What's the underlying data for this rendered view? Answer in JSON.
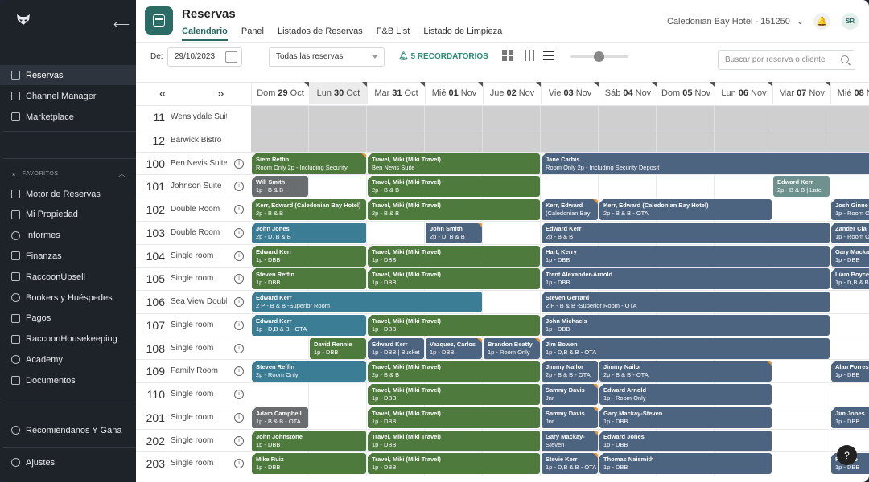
{
  "sidebar": {
    "items": [
      {
        "label": "Reservas",
        "icon": "calendar-icon",
        "active": true
      },
      {
        "label": "Channel Manager",
        "icon": "cloud-icon"
      },
      {
        "label": "Marketplace",
        "icon": "grid-icon"
      }
    ],
    "favorites_label": "FAVORITOS",
    "favorites": [
      {
        "label": "Motor de Reservas",
        "icon": "booking-engine-icon"
      },
      {
        "label": "Mi Propiedad",
        "icon": "building-icon"
      },
      {
        "label": "Informes",
        "icon": "reports-icon"
      },
      {
        "label": "Finanzas",
        "icon": "finance-icon"
      },
      {
        "label": "RaccoonUpsell",
        "icon": "upsell-icon"
      },
      {
        "label": "Bookers y Huéspedes",
        "icon": "guests-icon"
      },
      {
        "label": "Pagos",
        "icon": "payments-icon"
      },
      {
        "label": "RaccoonHousekeeping",
        "icon": "housekeeping-icon"
      },
      {
        "label": "Academy",
        "icon": "academy-icon"
      },
      {
        "label": "Documentos",
        "icon": "documents-icon"
      }
    ],
    "recommend": "Recomiéndanos Y Gana",
    "settings": "Ajustes"
  },
  "header": {
    "title": "Reservas",
    "tabs": [
      "Calendario",
      "Panel",
      "Listados de Reservas",
      "F&B List",
      "Listado de Limpieza"
    ],
    "hotel": "Caledonian Bay Hotel - 151250",
    "avatar": "SR"
  },
  "toolbar": {
    "date_label": "De:",
    "date": "29/10/2023",
    "filter": "Todas las reservas",
    "reminders": "5 RECORDATORIOS",
    "search_placeholder": "Buscar por reserva o cliente"
  },
  "days": [
    {
      "wd": "Dom",
      "d": "29",
      "m": "Oct"
    },
    {
      "wd": "Lun",
      "d": "30",
      "m": "Oct",
      "today": true
    },
    {
      "wd": "Mar",
      "d": "31",
      "m": "Oct"
    },
    {
      "wd": "Mié",
      "d": "01",
      "m": "Nov"
    },
    {
      "wd": "Jue",
      "d": "02",
      "m": "Nov"
    },
    {
      "wd": "Vie",
      "d": "03",
      "m": "Nov"
    },
    {
      "wd": "Sáb",
      "d": "04",
      "m": "Nov"
    },
    {
      "wd": "Dom",
      "d": "05",
      "m": "Nov"
    },
    {
      "wd": "Lun",
      "d": "06",
      "m": "Nov"
    },
    {
      "wd": "Mar",
      "d": "07",
      "m": "Nov"
    },
    {
      "wd": "Mié",
      "d": "08",
      "m": "Nov"
    }
  ],
  "rooms": [
    {
      "num": "11",
      "name": "Wenslydale Suite",
      "grey": true,
      "bookings": []
    },
    {
      "num": "12",
      "name": "Barwick Bistro",
      "grey": true,
      "bookings": []
    },
    {
      "num": "100",
      "name": "Ben Nevis Suite",
      "bookings": [
        {
          "s": 0,
          "e": 2,
          "c": "g",
          "n": "Siem Reffin",
          "d": "Room Only 2p - Including Security",
          "mk": true,
          "st": true
        },
        {
          "s": 2,
          "e": 5,
          "c": "g",
          "n": "Travel, Miki (Miki Travel)",
          "d": "Ben Nevis Suite",
          "st": true
        },
        {
          "s": 5,
          "e": 11,
          "c": "b",
          "n": "Jane Carbis",
          "d": "Room Only 2p - Including Security Deposit",
          "st": true
        }
      ]
    },
    {
      "num": "101",
      "name": "Johnson Suite",
      "bookings": [
        {
          "s": 0,
          "e": 1,
          "c": "gr",
          "n": "Will Smith",
          "d": "1p - B & B -",
          "st": true
        },
        {
          "s": 2,
          "e": 5,
          "c": "g",
          "n": "Travel, Miki (Miki Travel)",
          "d": "2p - B & B",
          "st": true
        },
        {
          "s": 9,
          "e": 10,
          "c": "gt",
          "n": "Edward Kerr",
          "d": "2p - B & B | Late"
        }
      ]
    },
    {
      "num": "102",
      "name": "Double Room",
      "bookings": [
        {
          "s": 0,
          "e": 2,
          "c": "g",
          "n": "Kerr, Edward (Caledonian Bay Hotel)",
          "d": "2p - B & B",
          "st": true
        },
        {
          "s": 2,
          "e": 5,
          "c": "g",
          "n": "Travel, Miki (Miki Travel)",
          "d": "2p - B & B",
          "st": true
        },
        {
          "s": 5,
          "e": 6,
          "c": "b",
          "n": "Kerr, Edward",
          "d": "(Caledonian Bay",
          "mk": true,
          "st": true
        },
        {
          "s": 6,
          "e": 9,
          "c": "b",
          "n": "Kerr, Edward (Caledonian Bay Hotel)",
          "d": "2p - B & B - OTA",
          "st": true
        },
        {
          "s": 10,
          "e": 11,
          "c": "b",
          "n": "Josh Ginne",
          "d": "1p - Room O",
          "st": true
        }
      ]
    },
    {
      "num": "103",
      "name": "Double Room",
      "bookings": [
        {
          "s": 0,
          "e": 2,
          "c": "t",
          "n": "John Jones",
          "d": "2p - D, B & B",
          "st": true
        },
        {
          "s": 3,
          "e": 4,
          "c": "b",
          "n": "John Smith",
          "d": "2p - D, B & B",
          "mk": true
        },
        {
          "s": 5,
          "e": 10,
          "c": "b",
          "n": "Edward Kerr",
          "d": "2p - B & B",
          "st": true
        },
        {
          "s": 10,
          "e": 11,
          "c": "b",
          "n": "Zander Cla",
          "d": "1p - Room O",
          "st": true
        }
      ]
    },
    {
      "num": "104",
      "name": "Single room",
      "bookings": [
        {
          "s": 0,
          "e": 2,
          "c": "g",
          "n": "Edward Kerr",
          "d": "1p - DBB",
          "st": true
        },
        {
          "s": 2,
          "e": 5,
          "c": "g",
          "n": "Travel, Miki (Miki Travel)",
          "d": "1p - DBB",
          "st": true
        },
        {
          "s": 5,
          "e": 10,
          "c": "b",
          "n": "Hart, Kerry",
          "d": "1p - DBB",
          "st": true
        },
        {
          "s": 10,
          "e": 11,
          "c": "b",
          "n": "Gary Macka",
          "d": "1p - DBB",
          "st": true
        }
      ]
    },
    {
      "num": "105",
      "name": "Single room",
      "bookings": [
        {
          "s": 0,
          "e": 2,
          "c": "g",
          "n": "Steven Reffin",
          "d": "1p - DBB",
          "st": true
        },
        {
          "s": 2,
          "e": 5,
          "c": "g",
          "n": "Travel, Miki (Miki Travel)",
          "d": "1p - DBB",
          "st": true
        },
        {
          "s": 5,
          "e": 10,
          "c": "b",
          "n": "Trent Alexander-Arnold",
          "d": "1p - DBB",
          "st": true
        },
        {
          "s": 10,
          "e": 11,
          "c": "b",
          "n": "Liam Boyce",
          "d": "1p - D,B & B",
          "st": true
        }
      ]
    },
    {
      "num": "106",
      "name": "Sea View Double",
      "bookings": [
        {
          "s": 0,
          "e": 4,
          "c": "t",
          "n": "Edward Kerr",
          "d": "2 P - B & B -Superior Room",
          "st": true
        },
        {
          "s": 5,
          "e": 10,
          "c": "b",
          "n": "Steven Gerrard",
          "d": "2 P - B & B -Superior Room - OTA",
          "st": true
        }
      ]
    },
    {
      "num": "107",
      "name": "Single room",
      "bookings": [
        {
          "s": 0,
          "e": 2,
          "c": "t",
          "n": "Edward Kerr",
          "d": "1p - D,B & B - OTA",
          "st": true
        },
        {
          "s": 2,
          "e": 5,
          "c": "g",
          "n": "Travel, Miki (Miki Travel)",
          "d": "1p - DBB",
          "st": true
        },
        {
          "s": 5,
          "e": 10,
          "c": "b",
          "n": "John Michaels",
          "d": "1p - DBB",
          "st": true
        }
      ]
    },
    {
      "num": "108",
      "name": "Single room",
      "bookings": [
        {
          "s": 1,
          "e": 2,
          "c": "g",
          "n": "David Rennie",
          "d": "1p - DBB"
        },
        {
          "s": 2,
          "e": 3,
          "c": "b",
          "n": "Edward Kerr",
          "d": "1p - DBB | Bucket",
          "st": true
        },
        {
          "s": 3,
          "e": 4,
          "c": "b",
          "n": "Vazquez, Carlos",
          "d": "1p - DBB",
          "mk": true
        },
        {
          "s": 4,
          "e": 5,
          "c": "b",
          "n": "Brandon Beatty",
          "d": "1p - Room Only",
          "mk": true
        },
        {
          "s": 5,
          "e": 10,
          "c": "b",
          "n": "Jim Bowen",
          "d": "1p - D,B & B - OTA",
          "st": true
        }
      ]
    },
    {
      "num": "109",
      "name": "Family Room",
      "bookings": [
        {
          "s": 0,
          "e": 2,
          "c": "t",
          "n": "Steven Reffin",
          "d": "2p - Room Only",
          "st": true
        },
        {
          "s": 2,
          "e": 5,
          "c": "g",
          "n": "Travel, Miki (Miki Travel)",
          "d": "2p - B & B",
          "st": true
        },
        {
          "s": 5,
          "e": 6,
          "c": "b",
          "n": "Jimmy Nailor",
          "d": "2p - B & B - OTA",
          "st": true
        },
        {
          "s": 6,
          "e": 9,
          "c": "b",
          "n": "Jimmy Nailor",
          "d": "2p - B & B - OTA",
          "mk": true
        },
        {
          "s": 10,
          "e": 11,
          "c": "b",
          "n": "Alan Forres",
          "d": "1p - DBB",
          "st": true
        }
      ]
    },
    {
      "num": "110",
      "name": "Single room",
      "bookings": [
        {
          "s": 2,
          "e": 5,
          "c": "g",
          "n": "Travel, Miki (Miki Travel)",
          "d": "1p - DBB",
          "st": true
        },
        {
          "s": 5,
          "e": 6,
          "c": "b",
          "n": "Sammy Davis",
          "d": "Jnr",
          "mk": true
        },
        {
          "s": 6,
          "e": 9,
          "c": "b",
          "n": "Edward Arnold",
          "d": "1p - Room Only",
          "st": true
        }
      ]
    },
    {
      "num": "201",
      "name": "Single room",
      "bookings": [
        {
          "s": 0,
          "e": 1,
          "c": "gr",
          "n": "Adam Campbell",
          "d": "1p - B & B - OTA",
          "st": true
        },
        {
          "s": 2,
          "e": 5,
          "c": "g",
          "n": "Travel, Miki (Miki Travel)",
          "d": "1p - DBB",
          "st": true
        },
        {
          "s": 5,
          "e": 6,
          "c": "b",
          "n": "Sammy Davis",
          "d": "Jnr",
          "mk": true
        },
        {
          "s": 6,
          "e": 9,
          "c": "b",
          "n": "Gary Mackay-Steven",
          "d": "1p - DBB",
          "st": true
        },
        {
          "s": 10,
          "e": 11,
          "c": "b",
          "n": "Jim Jones",
          "d": "1p - DBB",
          "st": true
        }
      ]
    },
    {
      "num": "202",
      "name": "Single room",
      "bookings": [
        {
          "s": 0,
          "e": 2,
          "c": "g",
          "n": "John Johnstone",
          "d": "1p - DBB",
          "st": true
        },
        {
          "s": 2,
          "e": 5,
          "c": "g",
          "n": "Travel, Miki (Miki Travel)",
          "d": "1p - DBB",
          "st": true
        },
        {
          "s": 5,
          "e": 6,
          "c": "b",
          "n": "Gary Mackay-",
          "d": "Steven",
          "mk": true
        },
        {
          "s": 6,
          "e": 9,
          "c": "b",
          "n": "Edward Jones",
          "d": "1p - DBB",
          "st": true
        }
      ]
    },
    {
      "num": "203",
      "name": "Single room",
      "bookings": [
        {
          "s": 0,
          "e": 2,
          "c": "g",
          "n": "Mike Ruiz",
          "d": "1p - DBB",
          "st": true
        },
        {
          "s": 2,
          "e": 5,
          "c": "g",
          "n": "Travel, Miki (Miki Travel)",
          "d": "1p - DBB",
          "st": true
        },
        {
          "s": 5,
          "e": 6,
          "c": "b",
          "n": "Stevie Kerr",
          "d": "1p - D,B & B - OTA",
          "mk": true
        },
        {
          "s": 6,
          "e": 9,
          "c": "b",
          "n": "Thomas Naismith",
          "d": "1p - DBB",
          "st": true
        },
        {
          "s": 10,
          "e": 11,
          "c": "b",
          "n": "Fr Rolle",
          "d": "1p - DBB",
          "st": true
        }
      ]
    }
  ],
  "help": "?"
}
